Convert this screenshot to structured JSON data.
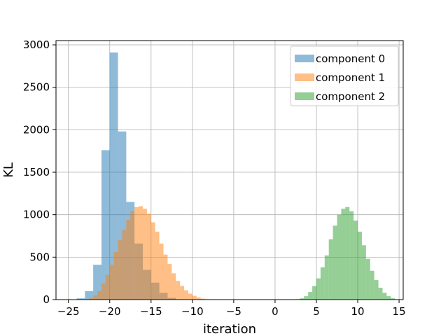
{
  "chart_data": {
    "type": "histogram",
    "title": "",
    "xlabel": "iteration",
    "ylabel": "KL",
    "xlim": [
      -26.5,
      15.5
    ],
    "ylim": [
      0,
      3050
    ],
    "xticks": [
      -25,
      -20,
      -15,
      -10,
      -5,
      0,
      5,
      10,
      15
    ],
    "yticks": [
      0,
      500,
      1000,
      1500,
      2000,
      2500,
      3000
    ],
    "grid": true,
    "legend_position": "top-right",
    "series": [
      {
        "name": "component 0",
        "color": "#1f77b4",
        "opacity": 0.5,
        "bins": [
          [
            -24.0,
            -23.0,
            15
          ],
          [
            -23.0,
            -22.0,
            100
          ],
          [
            -22.0,
            -21.0,
            410
          ],
          [
            -21.0,
            -20.0,
            1760
          ],
          [
            -20.0,
            -19.0,
            2910
          ],
          [
            -19.0,
            -18.0,
            1980
          ],
          [
            -18.0,
            -17.0,
            1150
          ],
          [
            -17.0,
            -16.0,
            660
          ],
          [
            -16.0,
            -15.0,
            350
          ],
          [
            -15.0,
            -14.0,
            200
          ],
          [
            -14.0,
            -13.0,
            80
          ],
          [
            -13.0,
            -12.0,
            20
          ]
        ]
      },
      {
        "name": "component 1",
        "color": "#ff7f0e",
        "opacity": 0.5,
        "bins": [
          [
            -22.5,
            -22.0,
            20
          ],
          [
            -22.0,
            -21.5,
            50
          ],
          [
            -21.5,
            -21.0,
            100
          ],
          [
            -21.0,
            -20.5,
            190
          ],
          [
            -20.5,
            -20.0,
            290
          ],
          [
            -20.0,
            -19.5,
            410
          ],
          [
            -19.5,
            -19.0,
            560
          ],
          [
            -19.0,
            -18.5,
            700
          ],
          [
            -18.5,
            -18.0,
            820
          ],
          [
            -18.0,
            -17.5,
            940
          ],
          [
            -17.5,
            -17.0,
            1040
          ],
          [
            -17.0,
            -16.5,
            1090
          ],
          [
            -16.5,
            -16.0,
            1100
          ],
          [
            -16.0,
            -15.5,
            1070
          ],
          [
            -15.5,
            -15.0,
            1010
          ],
          [
            -15.0,
            -14.5,
            910
          ],
          [
            -14.5,
            -14.0,
            800
          ],
          [
            -14.0,
            -13.5,
            660
          ],
          [
            -13.5,
            -13.0,
            530
          ],
          [
            -13.0,
            -12.5,
            420
          ],
          [
            -12.5,
            -12.0,
            310
          ],
          [
            -12.0,
            -11.5,
            220
          ],
          [
            -11.5,
            -11.0,
            160
          ],
          [
            -11.0,
            -10.5,
            110
          ],
          [
            -10.5,
            -10.0,
            70
          ],
          [
            -10.0,
            -9.5,
            45
          ],
          [
            -9.5,
            -9.0,
            25
          ],
          [
            -9.0,
            -8.5,
            12
          ],
          [
            -8.5,
            -8.0,
            5
          ]
        ]
      },
      {
        "name": "component 2",
        "color": "#2ca02c",
        "opacity": 0.5,
        "bins": [
          [
            2.5,
            3.0,
            5
          ],
          [
            3.0,
            3.5,
            15
          ],
          [
            3.5,
            4.0,
            40
          ],
          [
            4.0,
            4.5,
            90
          ],
          [
            4.5,
            5.0,
            160
          ],
          [
            5.0,
            5.5,
            250
          ],
          [
            5.5,
            6.0,
            380
          ],
          [
            6.0,
            6.5,
            520
          ],
          [
            6.5,
            7.0,
            710
          ],
          [
            7.0,
            7.5,
            870
          ],
          [
            7.5,
            8.0,
            1000
          ],
          [
            8.0,
            8.5,
            1070
          ],
          [
            8.5,
            9.0,
            1090
          ],
          [
            9.0,
            9.5,
            1040
          ],
          [
            9.5,
            10.0,
            930
          ],
          [
            10.0,
            10.5,
            800
          ],
          [
            10.5,
            11.0,
            640
          ],
          [
            11.0,
            11.5,
            480
          ],
          [
            11.5,
            12.0,
            340
          ],
          [
            12.0,
            12.5,
            230
          ],
          [
            12.5,
            13.0,
            140
          ],
          [
            13.0,
            13.5,
            80
          ],
          [
            13.5,
            14.0,
            40
          ],
          [
            14.0,
            14.5,
            15
          ]
        ]
      }
    ]
  }
}
